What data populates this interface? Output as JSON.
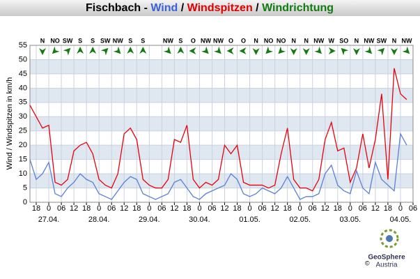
{
  "chart_data": {
    "type": "line",
    "title_parts": [
      {
        "text": "Fischbach - ",
        "color": "#000000"
      },
      {
        "text": "Wind",
        "color": "#3a62d8"
      },
      {
        "text": " / ",
        "color": "#000000"
      },
      {
        "text": "Windspitzen",
        "color": "#e00000"
      },
      {
        "text": " / ",
        "color": "#000000"
      },
      {
        "text": "Windrichtung",
        "color": "#117a11"
      }
    ],
    "y_label": "Wind / Windspitzen in km/h",
    "xlim": [
      15,
      198
    ],
    "ylim": [
      0,
      55
    ],
    "yticks": [
      0,
      5,
      10,
      15,
      20,
      25,
      30,
      35,
      40,
      45,
      50,
      55
    ],
    "grid": true,
    "xticks": [
      18,
      {
        "value": 24,
        "label": "0"
      },
      {
        "value": 30,
        "label": "06"
      },
      {
        "value": 36,
        "label": "12"
      },
      {
        "value": 42,
        "label": "18"
      },
      {
        "value": 48,
        "label": "0"
      },
      {
        "value": 54,
        "label": "06"
      },
      {
        "value": 60,
        "label": "12"
      },
      {
        "value": 66,
        "label": "18"
      },
      {
        "value": 72,
        "label": "0"
      },
      {
        "value": 78,
        "label": "06"
      },
      {
        "value": 84,
        "label": "12"
      },
      {
        "value": 90,
        "label": "18"
      },
      {
        "value": 96,
        "label": "0"
      },
      {
        "value": 102,
        "label": "06"
      },
      {
        "value": 108,
        "label": "12"
      },
      {
        "value": 114,
        "label": "18"
      },
      {
        "value": 120,
        "label": "0"
      },
      {
        "value": 126,
        "label": "06"
      },
      {
        "value": 132,
        "label": "12"
      },
      {
        "value": 138,
        "label": "18"
      },
      {
        "value": 144,
        "label": "0"
      },
      {
        "value": 150,
        "label": "06"
      },
      {
        "value": 156,
        "label": "12"
      },
      {
        "value": 162,
        "label": "18"
      },
      {
        "value": 168,
        "label": "0"
      },
      {
        "value": 174,
        "label": "06"
      },
      {
        "value": 180,
        "label": "12"
      },
      {
        "value": 186,
        "label": "18"
      },
      {
        "value": 192,
        "label": "0"
      },
      {
        "value": 198,
        "label": "06"
      }
    ],
    "date_ticks": [
      {
        "value": 24,
        "label": "27.04."
      },
      {
        "value": 48,
        "label": "28.04."
      },
      {
        "value": 72,
        "label": "29.04."
      },
      {
        "value": 96,
        "label": "30.04."
      },
      {
        "value": 120,
        "label": "01.05."
      },
      {
        "value": 144,
        "label": "02.05."
      },
      {
        "value": 168,
        "label": "03.05."
      },
      {
        "value": 192,
        "label": "04.05."
      }
    ],
    "x": [
      15,
      18,
      21,
      24,
      27,
      30,
      33,
      36,
      39,
      42,
      45,
      48,
      51,
      54,
      57,
      60,
      63,
      66,
      69,
      72,
      75,
      78,
      81,
      84,
      87,
      90,
      93,
      96,
      99,
      102,
      105,
      108,
      111,
      114,
      117,
      120,
      123,
      126,
      129,
      132,
      135,
      138,
      141,
      144,
      147,
      150,
      153,
      156,
      159,
      162,
      165,
      168,
      171,
      174,
      177,
      180,
      183,
      186,
      189,
      192,
      195
    ],
    "series": [
      {
        "name": "Wind",
        "color": "#5a7fd8",
        "values": [
          15,
          8,
          10,
          14,
          3,
          2,
          5,
          7,
          10,
          8,
          7,
          3,
          2,
          1,
          4,
          7,
          9,
          8,
          3,
          2,
          1,
          2,
          3,
          7,
          8,
          5,
          2,
          1,
          3,
          4,
          5,
          6,
          10,
          8,
          3,
          2,
          3,
          5,
          4,
          3,
          5,
          9,
          5,
          1,
          2,
          2,
          3,
          10,
          13,
          6,
          4,
          3,
          11,
          5,
          3,
          14,
          8,
          6,
          4,
          24,
          20
        ]
      },
      {
        "name": "Windspitzen",
        "color": "#e8000b",
        "values": [
          34,
          30,
          26,
          27,
          7,
          6,
          8,
          18,
          20,
          21,
          17,
          8,
          6,
          5,
          10,
          24,
          26,
          22,
          8,
          6,
          5,
          5,
          8,
          22,
          21,
          27,
          8,
          5,
          7,
          6,
          8,
          20,
          17,
          20,
          7,
          6,
          6,
          6,
          5,
          6,
          17,
          26,
          8,
          5,
          5,
          4,
          8,
          22,
          28,
          18,
          19,
          7,
          12,
          24,
          12,
          22,
          38,
          8,
          47,
          38,
          36
        ]
      }
    ],
    "direction_x": [
      21,
      27,
      33,
      39,
      45,
      51,
      57,
      63,
      69,
      75,
      81,
      87,
      93,
      99,
      105,
      111,
      117,
      123,
      129,
      135,
      141,
      147,
      153,
      159,
      165,
      171,
      177,
      183,
      189,
      195
    ],
    "directions": [
      "N",
      "NO",
      "SW",
      "S",
      "S",
      "SW",
      "NW",
      "S",
      "S",
      null,
      "NW",
      "S",
      "O",
      "NW",
      "NW",
      "O",
      "O",
      "N",
      "NO",
      "NO",
      "N",
      "N",
      "NW",
      "W",
      "SO",
      "N",
      "NW",
      "SW",
      "N",
      "NW"
    ],
    "direction_color": "#117a11"
  },
  "logo": {
    "name": "GeoSphere",
    "sub": "Austria",
    "copyright": "©"
  }
}
